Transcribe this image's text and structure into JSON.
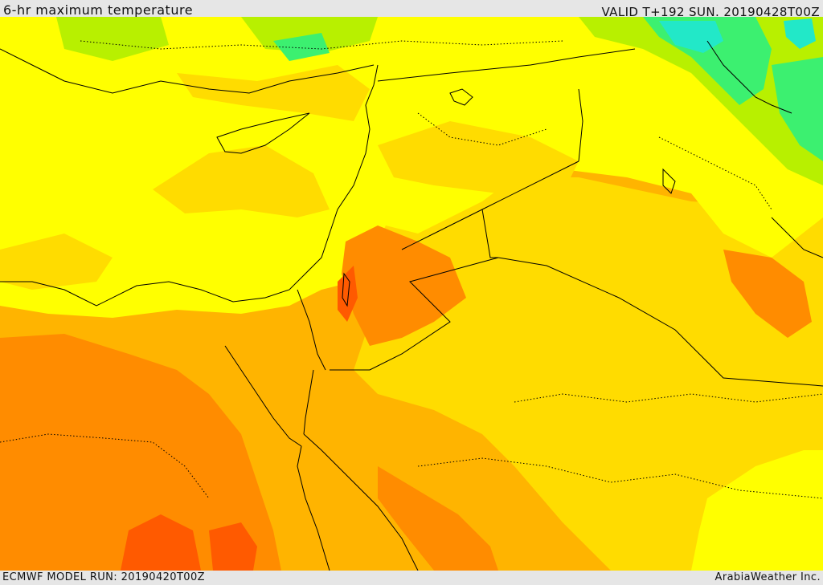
{
  "header": {
    "title": "6-hr maximum temperature",
    "valid": "VALID T+192 SUN. 20190428T00Z"
  },
  "footer": {
    "model_run": "ECMWF MODEL RUN: 20190420T00Z",
    "credit": "ArabiaWeather Inc."
  },
  "colors": {
    "cool_cyan": "#22e8c8",
    "cool_green": "#3cf070",
    "mild_lime": "#b8f000",
    "warm_yellow": "#ffff00",
    "warmer_gold": "#ffdc00",
    "hot_amber": "#ffb400",
    "hotter_orange": "#ff8c00",
    "hottest_red": "#ff5a00",
    "border_line": "#000000"
  }
}
